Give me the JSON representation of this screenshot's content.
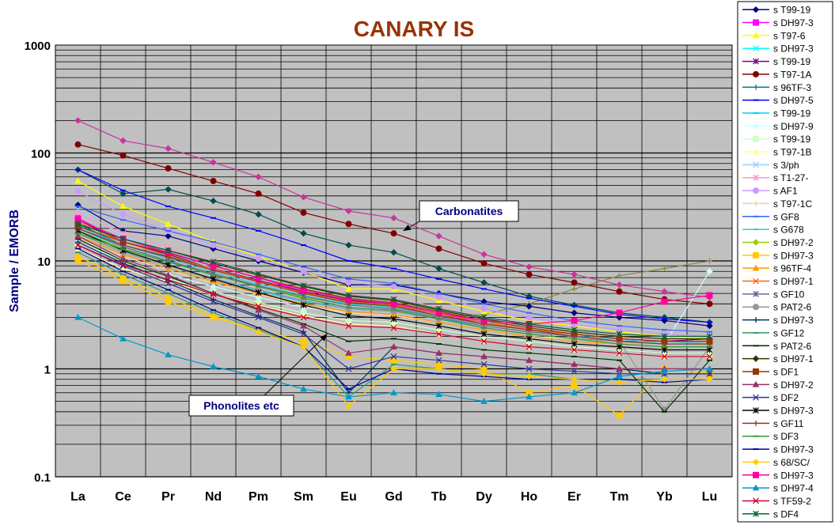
{
  "chart_data": {
    "type": "line",
    "title": "CANARY IS",
    "ylabel": "Sample / EMORB",
    "xlabel": "",
    "yscale": "log",
    "ylim": [
      0.1,
      1000
    ],
    "yticks": [
      "0.1",
      "1",
      "10",
      "100",
      "1000"
    ],
    "categories": [
      "La",
      "Ce",
      "Pr",
      "Nd",
      "Pm",
      "Sm",
      "Eu",
      "Gd",
      "Tb",
      "Dy",
      "Ho",
      "Er",
      "Tm",
      "Yb",
      "Lu"
    ],
    "grid": true,
    "legend_position": "right",
    "annotations": [
      {
        "text": "Carbonatites",
        "arrow_to": [
          "Gd",
          19
        ]
      },
      {
        "text": "Phonolites etc",
        "arrow_to": [
          "Sm",
          2.1
        ]
      }
    ],
    "series": [
      {
        "name": "s T99-19",
        "color": "#000080",
        "marker": "diamond",
        "values": [
          33,
          19,
          17,
          13,
          10,
          7.8,
          6.0,
          6.0,
          5.0,
          4.2,
          3.8,
          3.3,
          3.0,
          2.8,
          2.5
        ]
      },
      {
        "name": "s DH97-3",
        "color": "#ff00ff",
        "marker": "square",
        "values": [
          25,
          15,
          12,
          9,
          7,
          5.2,
          4.3,
          4.0,
          3.3,
          2.7,
          2.3,
          2.0,
          1.8,
          1.8,
          1.9
        ]
      },
      {
        "name": "s T97-6",
        "color": "#ffff00",
        "marker": "triangle",
        "values": [
          55,
          32,
          22,
          15,
          11,
          8,
          5.5,
          5.5,
          4.3,
          3.4,
          2.8,
          2.5,
          2.2,
          2.0,
          1.9
        ]
      },
      {
        "name": "s DH97-3",
        "color": "#00ffff",
        "marker": "x",
        "values": [
          20,
          13,
          10,
          7.5,
          5.8,
          4.6,
          4.0,
          3.7,
          3.1,
          2.6,
          2.3,
          2.0,
          1.9,
          1.7,
          1.7
        ]
      },
      {
        "name": "s T99-19",
        "color": "#800080",
        "marker": "star",
        "values": [
          24,
          15,
          11.5,
          8.5,
          6.6,
          5.2,
          4.3,
          3.9,
          3.2,
          2.6,
          2.3,
          2.1,
          1.9,
          1.8,
          1.9
        ]
      },
      {
        "name": "s T97-1A",
        "color": "#800000",
        "marker": "circle",
        "values": [
          120,
          95,
          72,
          55,
          42,
          28,
          22,
          18,
          13,
          9.5,
          7.5,
          6.3,
          5.2,
          4.4,
          4.0
        ]
      },
      {
        "name": "s 96TF-3",
        "color": "#008080",
        "marker": "plus",
        "values": [
          22,
          14,
          11,
          8.4,
          6.5,
          5.0,
          4.2,
          3.8,
          3.2,
          2.7,
          2.3,
          2.1,
          1.9,
          1.8,
          1.8
        ]
      },
      {
        "name": "s DH97-5",
        "color": "#0000ff",
        "marker": "dash",
        "values": [
          70,
          45,
          32,
          25,
          19,
          14,
          10,
          8.5,
          6.8,
          5.5,
          4.5,
          3.8,
          3.2,
          2.9,
          2.7
        ]
      },
      {
        "name": "s T99-19",
        "color": "#00ccff",
        "marker": "dash",
        "values": [
          18,
          12,
          9,
          6.8,
          5.3,
          4.2,
          3.6,
          3.4,
          2.9,
          2.5,
          2.2,
          2.0,
          1.9,
          1.8,
          1.8
        ]
      },
      {
        "name": "s DH97-9",
        "color": "#ccffff",
        "marker": "diamond",
        "values": [
          15,
          10,
          7.5,
          5.8,
          4.6,
          3.7,
          3.3,
          3.1,
          2.7,
          2.3,
          2.0,
          1.9,
          1.8,
          1.7,
          8.0
        ]
      },
      {
        "name": "s T99-19",
        "color": "#ccffcc",
        "marker": "square",
        "values": [
          14,
          9,
          6.8,
          5.2,
          4.1,
          3.3,
          2.8,
          2.7,
          2.3,
          2.0,
          1.8,
          1.6,
          1.5,
          1.4,
          1.4
        ]
      },
      {
        "name": "s T97-1B",
        "color": "#ffff99",
        "marker": "triangle",
        "values": [
          13,
          8.5,
          6.4,
          4.9,
          3.9,
          3.1,
          2.6,
          2.5,
          2.1,
          1.8,
          1.6,
          1.5,
          1.4,
          1.3,
          1.3
        ]
      },
      {
        "name": "s 3/ph",
        "color": "#99ccff",
        "marker": "x",
        "values": [
          30,
          17,
          12,
          8.5,
          6.2,
          4.6,
          3.8,
          3.5,
          3.0,
          2.5,
          2.2,
          2.0,
          1.8,
          1.7,
          1.6
        ]
      },
      {
        "name": "s T1-27-",
        "color": "#ff99cc",
        "marker": "star",
        "values": [
          28,
          18,
          13.5,
          10,
          7.8,
          6.0,
          4.9,
          4.5,
          3.7,
          3.0,
          2.6,
          2.3,
          2.1,
          2.0,
          2.0
        ]
      },
      {
        "name": "s AF1",
        "color": "#cc99ff",
        "marker": "circle",
        "values": [
          44,
          27,
          19,
          14,
          10.5,
          8.0,
          6.3,
          5.8,
          4.6,
          3.6,
          3.0,
          2.6,
          2.3,
          2.1,
          2.0
        ]
      },
      {
        "name": "s T97-1C",
        "color": "#ffcc99",
        "marker": "plus",
        "values": [
          16,
          11,
          8.2,
          6.2,
          4.9,
          3.9,
          3.3,
          3.1,
          2.7,
          2.3,
          2.0,
          1.8,
          1.7,
          1.6,
          1.6
        ]
      },
      {
        "name": "s GF8",
        "color": "#3366ff",
        "marker": "dash",
        "values": [
          32,
          24,
          19,
          15,
          11.5,
          8.8,
          6.8,
          6.2,
          5.0,
          4.0,
          3.3,
          2.8,
          2.5,
          2.3,
          2.2
        ]
      },
      {
        "name": "s G678",
        "color": "#33cccc",
        "marker": "dash",
        "values": [
          21,
          14,
          10.5,
          7.9,
          6.1,
          4.8,
          4.0,
          3.7,
          3.1,
          2.6,
          2.3,
          2.0,
          1.9,
          1.8,
          1.7
        ]
      },
      {
        "name": "s DH97-2",
        "color": "#99cc00",
        "marker": "diamond",
        "values": [
          19,
          13,
          9.8,
          7.5,
          5.8,
          4.6,
          3.9,
          3.6,
          3.0,
          2.5,
          2.2,
          2.0,
          1.8,
          1.7,
          1.7
        ]
      },
      {
        "name": "s DH97-3",
        "color": "#ffcc00",
        "marker": "square",
        "values": [
          10,
          6.5,
          4.2,
          3.0,
          2.3,
          1.8,
          1.3,
          1.2,
          1.1,
          1.0,
          0.6,
          0.7,
          0.37,
          1.0,
          0.9
        ]
      },
      {
        "name": "s 96TF-4",
        "color": "#ff9900",
        "marker": "triangle",
        "values": [
          17,
          11.5,
          8.6,
          6.5,
          5.0,
          4.0,
          3.4,
          3.2,
          2.7,
          2.3,
          2.0,
          1.8,
          1.7,
          1.6,
          1.6
        ]
      },
      {
        "name": "s DH97-1",
        "color": "#ff6600",
        "marker": "x",
        "values": [
          23,
          15,
          11.2,
          8.4,
          6.5,
          5.1,
          4.2,
          3.9,
          3.2,
          2.7,
          2.3,
          2.1,
          1.9,
          1.8,
          1.8
        ]
      },
      {
        "name": "s GF10",
        "color": "#666699",
        "marker": "star",
        "values": [
          20,
          13.5,
          10,
          7.6,
          5.9,
          4.7,
          3.9,
          3.6,
          3.0,
          2.5,
          2.2,
          2.0,
          1.8,
          1.7,
          1.7
        ]
      },
      {
        "name": "s PAT2-6",
        "color": "#969696",
        "marker": "circle",
        "values": [
          18,
          12,
          9,
          6.9,
          5.4,
          4.3,
          3.6,
          3.4,
          2.9,
          2.4,
          2.1,
          1.9,
          1.8,
          0.42,
          1.6
        ]
      },
      {
        "name": "s DH97-3",
        "color": "#003366",
        "marker": "plus",
        "values": [
          15,
          9.5,
          6.6,
          4.4,
          3.1,
          2.2,
          0.6,
          1.6,
          1.4,
          1.3,
          1.2,
          1.1,
          1.0,
          0.9,
          0.9
        ]
      },
      {
        "name": "s GF12",
        "color": "#339966",
        "marker": "dash",
        "values": [
          12,
          7.5,
          5.0,
          3.3,
          2.3,
          1.6,
          0.55,
          1.1,
          1.0,
          0.9,
          0.9,
          0.8,
          0.8,
          0.8,
          0.8
        ]
      },
      {
        "name": "s PAT2-6",
        "color": "#003300",
        "marker": "dash",
        "values": [
          16,
          10,
          7.2,
          5.0,
          3.6,
          2.6,
          1.8,
          1.9,
          1.7,
          1.5,
          1.4,
          1.3,
          1.2,
          0.4,
          1.2
        ]
      },
      {
        "name": "s DH97-1",
        "color": "#333300",
        "marker": "diamond",
        "values": [
          22,
          16,
          12.5,
          9.5,
          7.4,
          5.8,
          4.7,
          4.3,
          3.5,
          2.9,
          2.5,
          2.2,
          2.0,
          1.9,
          1.9
        ]
      },
      {
        "name": "s DF1",
        "color": "#993300",
        "marker": "square",
        "values": [
          21,
          15,
          11.8,
          9.0,
          7.0,
          5.5,
          4.5,
          4.1,
          3.4,
          2.8,
          2.4,
          2.1,
          1.9,
          1.8,
          1.8
        ]
      },
      {
        "name": "s DH97-2",
        "color": "#993366",
        "marker": "triangle",
        "values": [
          17,
          10.5,
          7.4,
          5.0,
          3.5,
          2.5,
          1.4,
          1.6,
          1.4,
          1.3,
          1.2,
          1.1,
          1.0,
          1.0,
          1.0
        ]
      },
      {
        "name": "s DF2",
        "color": "#333399",
        "marker": "x",
        "values": [
          14,
          9.0,
          6.2,
          4.2,
          3.0,
          2.1,
          1.0,
          1.3,
          1.2,
          1.1,
          1.0,
          0.95,
          0.9,
          0.9,
          0.9
        ]
      },
      {
        "name": "s DH97-3",
        "color": "#000000",
        "marker": "star",
        "values": [
          19,
          12.5,
          9.2,
          6.8,
          5.1,
          3.9,
          3.1,
          2.9,
          2.5,
          2.1,
          1.9,
          1.7,
          1.6,
          1.5,
          1.5
        ]
      },
      {
        "name": "s GF11",
        "color": "#993333",
        "marker": "plus",
        "values": [
          20,
          14,
          10.8,
          8.2,
          6.4,
          5.0,
          4.1,
          3.8,
          3.1,
          2.6,
          2.3,
          2.0,
          1.8,
          1.7,
          1.7
        ]
      },
      {
        "name": "s DF3",
        "color": "#339933",
        "marker": "dash",
        "values": [
          18,
          12.8,
          9.8,
          7.4,
          5.8,
          4.5,
          3.7,
          3.5,
          2.9,
          2.4,
          2.1,
          1.9,
          1.7,
          1.6,
          1.6
        ]
      },
      {
        "name": "s DH97-3",
        "color": "#000099",
        "marker": "dash",
        "values": [
          13,
          8.0,
          5.4,
          3.5,
          2.4,
          1.6,
          0.65,
          1.0,
          0.9,
          0.85,
          0.8,
          0.8,
          0.8,
          0.75,
          0.8
        ]
      },
      {
        "name": "s 68/SC/",
        "color": "#ffcc00",
        "marker": "diamond",
        "values": [
          11,
          7.0,
          4.6,
          3.1,
          2.2,
          1.6,
          0.45,
          1.0,
          1.0,
          0.9,
          0.85,
          0.8,
          0.75,
          0.8,
          0.8
        ]
      },
      {
        "name": "s DH97-3",
        "color": "#ff0099",
        "marker": "square",
        "values": [
          24,
          16,
          12,
          9.0,
          7.0,
          5.4,
          4.4,
          4.0,
          3.3,
          2.8,
          2.6,
          2.8,
          3.3,
          4.2,
          4.8
        ]
      },
      {
        "name": "s DH97-4",
        "color": "#0099cc",
        "marker": "triangle",
        "values": [
          3.0,
          1.9,
          1.35,
          1.05,
          0.85,
          0.65,
          0.55,
          0.6,
          0.58,
          0.5,
          0.55,
          0.6,
          0.85,
          0.95,
          1.0
        ]
      },
      {
        "name": "s TF59-2",
        "color": "#cc0033",
        "marker": "x",
        "values": [
          14,
          9.2,
          6.7,
          4.9,
          3.8,
          3.0,
          2.5,
          2.4,
          2.1,
          1.8,
          1.6,
          1.5,
          1.4,
          1.3,
          1.3
        ]
      },
      {
        "name": "s DF4",
        "color": "#006633",
        "marker": "star",
        "values": [
          22,
          16,
          12.5,
          9.8,
          7.6,
          5.9,
          4.8,
          4.4,
          3.6,
          3.0,
          2.6,
          2.3,
          2.1,
          2.0,
          2.0
        ]
      }
    ],
    "extra_series": [
      {
        "color": "#cc3399",
        "marker": "diamond",
        "values": [
          200,
          130,
          110,
          82,
          60,
          39,
          29,
          25,
          17,
          11.5,
          8.8,
          7.5,
          6.0,
          5.2,
          4.6
        ]
      },
      {
        "color": "#004d4d",
        "marker": "diamond",
        "values": [
          70,
          42,
          46,
          36,
          27,
          18,
          14,
          12,
          8.5,
          6.3,
          4.7,
          3.9,
          3.3,
          3.0,
          2.7
        ]
      },
      {
        "color": "#888844",
        "marker": "plus",
        "values": [
          18,
          12,
          9.0,
          6.8,
          5.3,
          4.2,
          3.6,
          3.4,
          3.0,
          3.2,
          4.0,
          5.5,
          7.3,
          8.5,
          10
        ]
      }
    ]
  }
}
